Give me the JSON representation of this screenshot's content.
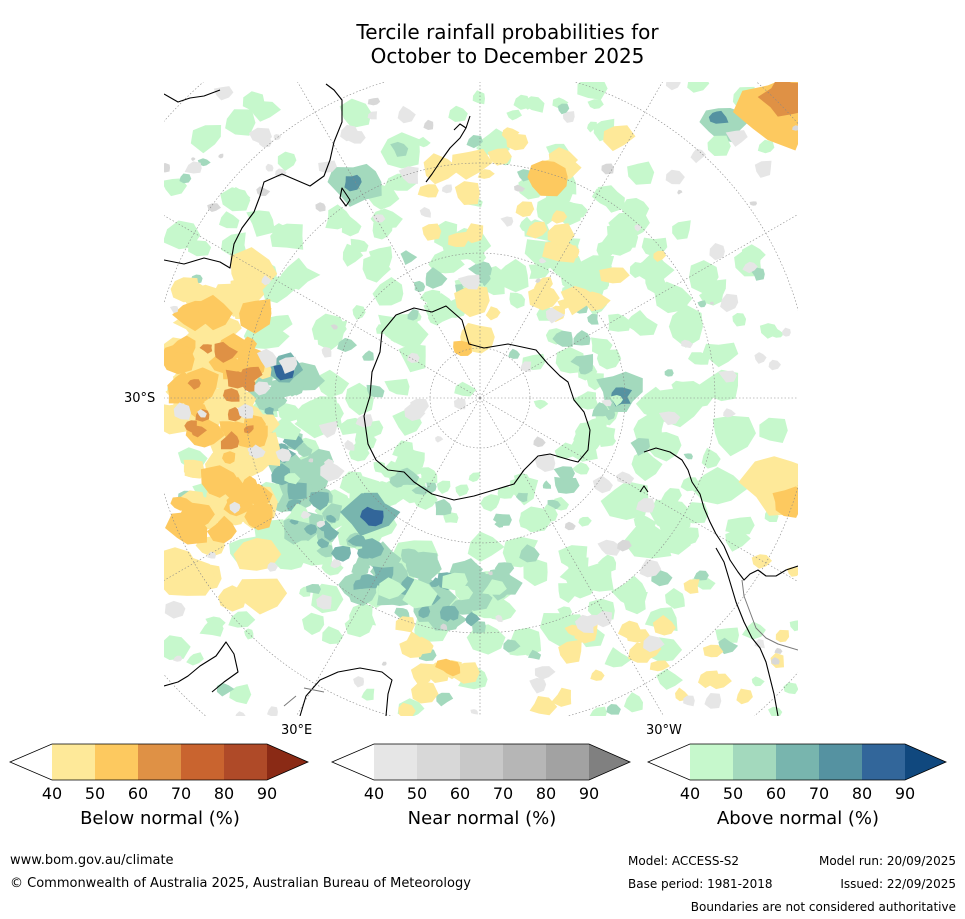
{
  "title": {
    "line1": "Tercile rainfall probabilities for",
    "line2": "October to December 2025"
  },
  "axis_labels": {
    "lat": "30°S",
    "lon_east": "30°E",
    "lon_west": "30°W"
  },
  "colorbars": [
    {
      "id": "below",
      "label": "Below normal (%)",
      "ticks": [
        "40",
        "50",
        "60",
        "70",
        "80",
        "90"
      ],
      "colors": [
        "#ffffff",
        "#fee999",
        "#fdc95f",
        "#df9145",
        "#c9642f",
        "#af4a28",
        "#8a2a15"
      ]
    },
    {
      "id": "near",
      "label": "Near normal (%)",
      "ticks": [
        "40",
        "50",
        "60",
        "70",
        "80",
        "90"
      ],
      "colors": [
        "#ffffff",
        "#e6e6e6",
        "#d8d8d8",
        "#c8c8c8",
        "#b6b6b6",
        "#a2a2a2",
        "#808080"
      ]
    },
    {
      "id": "above",
      "label": "Above normal (%)",
      "ticks": [
        "40",
        "50",
        "60",
        "70",
        "80",
        "90"
      ],
      "colors": [
        "#ffffff",
        "#c6f8cc",
        "#a3d9bd",
        "#78b5ae",
        "#5592a1",
        "#32669a",
        "#10487e"
      ]
    }
  ],
  "map": {
    "ocean_color": "#ffffff",
    "coast_color": "#000000",
    "border_color": "#7a7a7a",
    "grid_color": "#888888"
  },
  "footer": {
    "url": "www.bom.gov.au/climate",
    "copyright": "© Commonwealth of Australia 2025, Australian Bureau of Meteorology",
    "model": "Model: ACCESS-S2",
    "base_period": "Base period: 1981-2018",
    "model_run": "Model run: 20/09/2025",
    "issued": "Issued: 22/09/2025",
    "boundaries": "Boundaries are not considered authoritative"
  }
}
